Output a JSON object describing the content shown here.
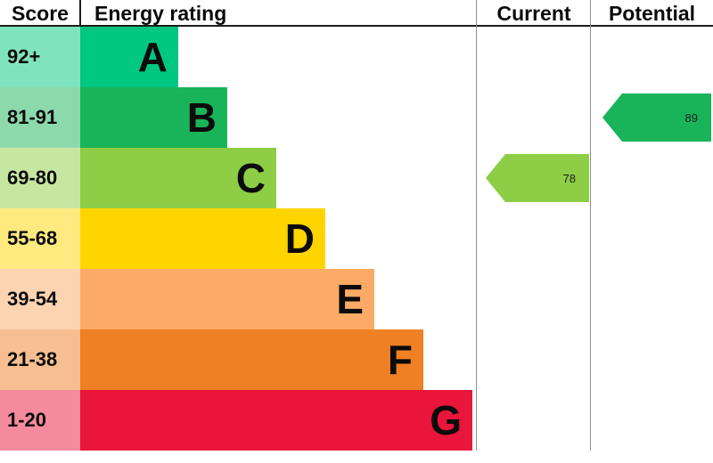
{
  "header": {
    "score": "Score",
    "energy_rating": "Energy rating",
    "current": "Current",
    "potential": "Potential"
  },
  "chart_data": {
    "type": "bar",
    "title": "Energy rating",
    "orientation": "horizontal",
    "bands": [
      {
        "letter": "A",
        "score_range": "92+",
        "color": "#00c781",
        "score_bg": "#80e3c0"
      },
      {
        "letter": "B",
        "score_range": "81-91",
        "color": "#19b459",
        "score_bg": "#8cd9ac"
      },
      {
        "letter": "C",
        "score_range": "69-80",
        "color": "#8dce46",
        "score_bg": "#c6e6a2"
      },
      {
        "letter": "D",
        "score_range": "55-68",
        "color": "#ffd500",
        "score_bg": "#ffea80"
      },
      {
        "letter": "E",
        "score_range": "39-54",
        "color": "#fcaa65",
        "score_bg": "#fdd4b2"
      },
      {
        "letter": "F",
        "score_range": "21-38",
        "color": "#ef8023",
        "score_bg": "#f7bf91"
      },
      {
        "letter": "G",
        "score_range": "1-20",
        "color": "#e9153b",
        "score_bg": "#f48a9d"
      }
    ],
    "current": {
      "value": 78,
      "band": "C",
      "band_index": 2,
      "color": "#8dce46"
    },
    "potential": {
      "value": 89,
      "band": "B",
      "band_index": 1,
      "color": "#19b459"
    }
  }
}
